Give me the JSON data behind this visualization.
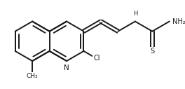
{
  "background": "#ffffff",
  "bond_color": "#1a1a1a",
  "bond_lw": 1.4,
  "font_size": 7.0,
  "font_color": "#1a1a1a",
  "figsize": [
    2.64,
    1.27
  ],
  "dpi": 100,
  "xlim": [
    0,
    2.64
  ],
  "ylim": [
    0,
    1.27
  ]
}
